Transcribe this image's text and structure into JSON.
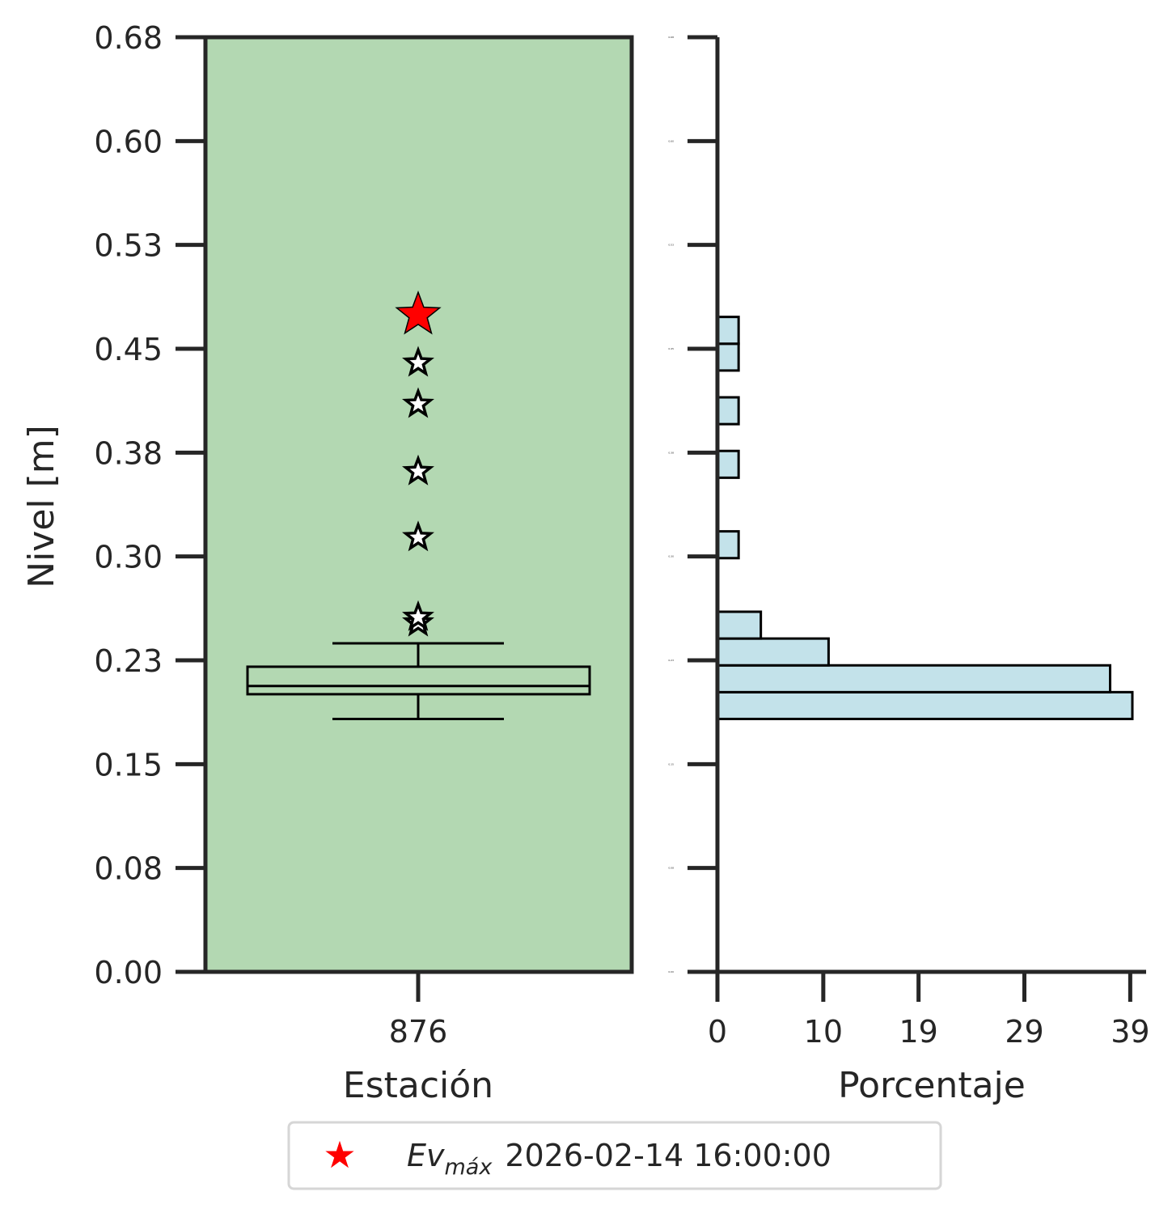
{
  "chart_data": [
    {
      "type": "box",
      "panel": "left",
      "xlabel": "Estación",
      "ylabel": "Nivel [m]",
      "ylim": [
        0.0,
        0.68
      ],
      "yticks": [
        "0.00",
        "0.08",
        "0.15",
        "0.23",
        "0.30",
        "0.38",
        "0.45",
        "0.53",
        "0.60",
        "0.68"
      ],
      "categories": [
        "876"
      ],
      "background_color": "#b3d8b2",
      "box": {
        "whisker_low": 0.184,
        "q1": 0.202,
        "median": 0.208,
        "q3": 0.222,
        "whisker_high": 0.239
      },
      "outliers": [
        0.254,
        0.258,
        0.316,
        0.364,
        0.413,
        0.443
      ],
      "max_event": {
        "value": 0.478,
        "color": "#ff0000"
      }
    },
    {
      "type": "bar",
      "orientation": "horizontal",
      "panel": "right",
      "xlabel": "Porcentaje",
      "xlim": [
        0,
        40.5
      ],
      "xticks": [
        "0",
        "10",
        "19",
        "29",
        "39"
      ],
      "ylim": [
        0.0,
        0.68
      ],
      "yticks": [
        "0.00",
        "0.08",
        "0.15",
        "0.23",
        "0.30",
        "0.38",
        "0.45",
        "0.53",
        "0.60",
        "0.68"
      ],
      "bar_color": "#c3e2ea",
      "bins": [
        {
          "low": 0.184,
          "high": 0.2035,
          "percent": 39.2
        },
        {
          "low": 0.2035,
          "high": 0.223,
          "percent": 37.1
        },
        {
          "low": 0.223,
          "high": 0.2425,
          "percent": 10.5
        },
        {
          "low": 0.2425,
          "high": 0.262,
          "percent": 4.1
        },
        {
          "low": 0.301,
          "high": 0.3205,
          "percent": 2.0
        },
        {
          "low": 0.3595,
          "high": 0.379,
          "percent": 2.0
        },
        {
          "low": 0.3985,
          "high": 0.418,
          "percent": 2.0
        },
        {
          "low": 0.4375,
          "high": 0.457,
          "percent": 2.0
        },
        {
          "low": 0.457,
          "high": 0.4765,
          "percent": 2.0
        }
      ]
    }
  ],
  "legend": {
    "symbol": "★",
    "symbol_color": "#ff0000",
    "label_main": "Ev",
    "label_sub": "máx",
    "date": "2026-02-14 16:00:00"
  }
}
